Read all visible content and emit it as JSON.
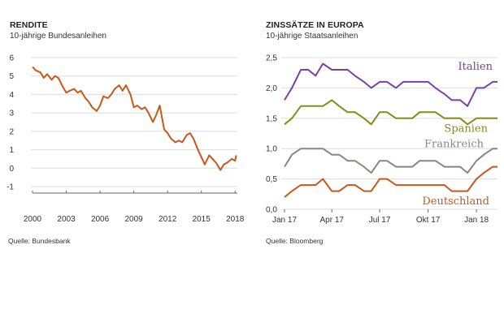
{
  "left_panel": {
    "title": "RENDITE",
    "subtitle": "10-jährige Bundesanleihen",
    "source": "Quelle: Bundesbank"
  },
  "right_panel": {
    "title": "ZINSSÄTZE IN EUROPA",
    "subtitle": "10-jährige Staatsanleihen",
    "source": "Quelle: Bloomberg"
  },
  "colors": {
    "deutschland": "#c8581a",
    "italien": "#7a3fa8",
    "spanien": "#7f8f16",
    "frankreich": "#8c8580",
    "grid": "#dddddd",
    "axis": "#666666"
  },
  "chart_data": [
    {
      "type": "line",
      "title": "RENDITE",
      "subtitle": "10-jährige Bundesanleihen",
      "x_tick_labels": [
        "2000",
        "2003",
        "2006",
        "2009",
        "2012",
        "2015",
        "2018"
      ],
      "x_ticks": [
        2000,
        2003,
        2006,
        2009,
        2012,
        2015,
        2018
      ],
      "y_ticks": [
        -1,
        0,
        1,
        2,
        3,
        4,
        5,
        6
      ],
      "xlim": [
        2000,
        2018.2
      ],
      "ylim": [
        -1,
        6
      ],
      "grid": true,
      "series": [
        {
          "color_key": "deutschland",
          "x": [
            2000.0,
            2000.3,
            2000.7,
            2001.0,
            2001.3,
            2001.7,
            2002.0,
            2002.3,
            2002.7,
            2003.0,
            2003.3,
            2003.7,
            2004.0,
            2004.3,
            2004.7,
            2005.0,
            2005.3,
            2005.7,
            2006.0,
            2006.3,
            2006.7,
            2007.0,
            2007.3,
            2007.7,
            2008.0,
            2008.3,
            2008.7,
            2009.0,
            2009.3,
            2009.7,
            2010.0,
            2010.3,
            2010.7,
            2011.0,
            2011.3,
            2011.7,
            2012.0,
            2012.3,
            2012.7,
            2013.0,
            2013.3,
            2013.7,
            2014.0,
            2014.3,
            2014.7,
            2015.0,
            2015.3,
            2015.7,
            2016.0,
            2016.3,
            2016.7,
            2017.0,
            2017.3,
            2017.7,
            2018.0,
            2018.1
          ],
          "y": [
            5.5,
            5.3,
            5.2,
            4.9,
            5.1,
            4.8,
            5.0,
            4.9,
            4.4,
            4.1,
            4.2,
            4.3,
            4.1,
            4.2,
            3.8,
            3.6,
            3.3,
            3.1,
            3.4,
            3.9,
            3.8,
            4.0,
            4.3,
            4.5,
            4.2,
            4.5,
            4.0,
            3.3,
            3.4,
            3.2,
            3.3,
            3.0,
            2.5,
            2.9,
            3.4,
            2.1,
            1.9,
            1.6,
            1.4,
            1.5,
            1.4,
            1.8,
            1.9,
            1.6,
            1.0,
            0.6,
            0.2,
            0.7,
            0.5,
            0.3,
            -0.1,
            0.2,
            0.3,
            0.5,
            0.4,
            0.7
          ]
        }
      ]
    },
    {
      "type": "line",
      "title": "ZINSSÄTZE IN EUROPA",
      "subtitle": "10-jährige Staatsanleihen",
      "x_tick_labels": [
        "Jan 17",
        "Apr 17",
        "Jul 17",
        "Okt 17",
        "Jan 18"
      ],
      "x_ticks": [
        "Jan 17",
        "Apr 17",
        "Jul 17",
        "Okt 17",
        "Jan 18"
      ],
      "x_dates": [
        "2017-01-01",
        "2017-04-01",
        "2017-07-01",
        "2017-10-01",
        "2018-01-01"
      ],
      "y_ticks": [
        "0,0",
        "0,5",
        "1,0",
        "1,5",
        "2,0",
        "2,5"
      ],
      "ylim": [
        0.0,
        2.5
      ],
      "grid": true,
      "x": [
        "2017-01-01",
        "2017-01-15",
        "2017-02-01",
        "2017-02-15",
        "2017-03-01",
        "2017-03-15",
        "2017-04-01",
        "2017-04-15",
        "2017-05-01",
        "2017-05-15",
        "2017-06-01",
        "2017-06-15",
        "2017-07-01",
        "2017-07-15",
        "2017-08-01",
        "2017-08-15",
        "2017-09-01",
        "2017-09-15",
        "2017-10-01",
        "2017-10-15",
        "2017-11-01",
        "2017-11-15",
        "2017-12-01",
        "2017-12-15",
        "2018-01-01",
        "2018-01-15",
        "2018-02-01",
        "2018-02-10"
      ],
      "series": [
        {
          "name": "Italien",
          "color_key": "italien",
          "y": [
            1.8,
            2.0,
            2.3,
            2.3,
            2.2,
            2.4,
            2.3,
            2.3,
            2.3,
            2.2,
            2.1,
            2.0,
            2.1,
            2.1,
            2.0,
            2.1,
            2.1,
            2.1,
            2.1,
            2.0,
            1.9,
            1.8,
            1.8,
            1.7,
            2.0,
            2.0,
            2.1,
            2.1
          ]
        },
        {
          "name": "Spanien",
          "color_key": "spanien",
          "y": [
            1.4,
            1.5,
            1.7,
            1.7,
            1.7,
            1.7,
            1.8,
            1.7,
            1.6,
            1.6,
            1.5,
            1.4,
            1.6,
            1.6,
            1.5,
            1.5,
            1.5,
            1.6,
            1.6,
            1.6,
            1.5,
            1.5,
            1.5,
            1.4,
            1.5,
            1.5,
            1.5,
            1.5
          ]
        },
        {
          "name": "Frankreich",
          "color_key": "frankreich",
          "y": [
            0.7,
            0.9,
            1.0,
            1.0,
            1.0,
            1.0,
            0.9,
            0.9,
            0.8,
            0.8,
            0.7,
            0.6,
            0.8,
            0.8,
            0.7,
            0.7,
            0.7,
            0.8,
            0.8,
            0.8,
            0.7,
            0.7,
            0.7,
            0.6,
            0.8,
            0.9,
            1.0,
            1.0
          ]
        },
        {
          "name": "Deutschland",
          "color_key": "deutschland",
          "y": [
            0.2,
            0.3,
            0.4,
            0.4,
            0.4,
            0.5,
            0.3,
            0.3,
            0.4,
            0.4,
            0.3,
            0.3,
            0.5,
            0.5,
            0.4,
            0.4,
            0.4,
            0.4,
            0.4,
            0.4,
            0.4,
            0.3,
            0.3,
            0.3,
            0.5,
            0.6,
            0.7,
            0.7
          ]
        }
      ]
    }
  ]
}
